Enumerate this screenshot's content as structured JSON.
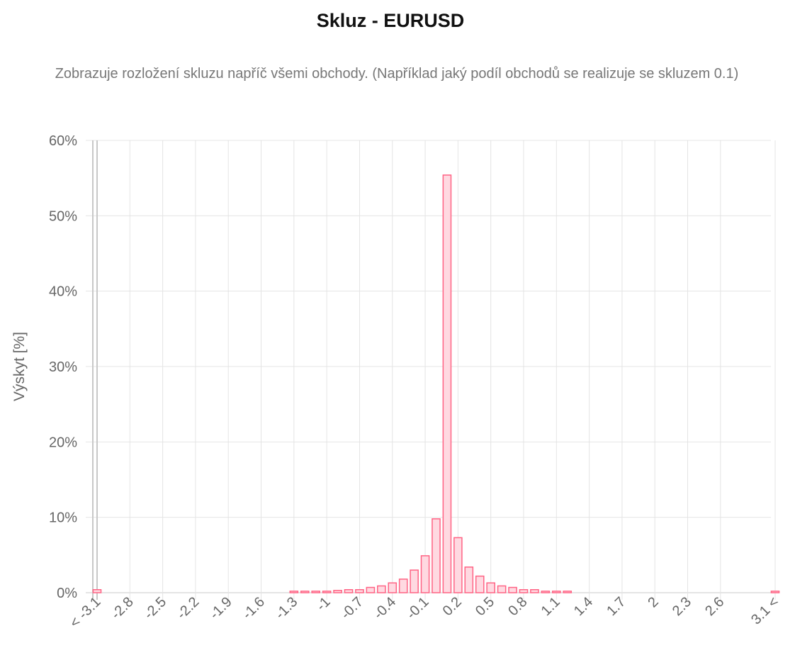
{
  "chart_data": {
    "type": "bar",
    "title": "Skluz - EURUSD",
    "subtitle": "Zobrazuje rozložení skluzu napříč všemi obchody. (Například jaký podíl obchodů se realizuje se skluzem 0.1)",
    "xlabel": "",
    "ylabel": "Výskyt [%]",
    "ylim": [
      0,
      60
    ],
    "yticks": [
      "0%",
      "10%",
      "20%",
      "30%",
      "40%",
      "50%",
      "60%"
    ],
    "grid": true,
    "legend": "none",
    "color_fill": "#ffd9e1",
    "color_stroke": "#ff6384",
    "categories": [
      "< -3.1",
      "-3",
      "-2.9",
      "-2.8",
      "-2.7",
      "-2.6",
      "-2.5",
      "-2.4",
      "-2.3",
      "-2.2",
      "-2.1",
      "-2",
      "-1.9",
      "-1.8",
      "-1.7",
      "-1.6",
      "-1.5",
      "-1.4",
      "-1.3",
      "-1.2",
      "-1.1",
      "-1",
      "-0.9",
      "-0.8",
      "-0.7",
      "-0.6",
      "-0.5",
      "-0.4",
      "-0.3",
      "-0.2",
      "-0.1",
      "0",
      "0.1",
      "0.2",
      "0.3",
      "0.4",
      "0.5",
      "0.6",
      "0.7",
      "0.8",
      "0.9",
      "1",
      "1.1",
      "1.2",
      "1.3",
      "1.4",
      "1.5",
      "1.6",
      "1.7",
      "1.8",
      "1.9",
      "2",
      "2.1",
      "2.2",
      "2.3",
      "2.4",
      "2.5",
      "2.6",
      "2.7",
      "2.8",
      "2.9",
      "3",
      "3.1 <"
    ],
    "xtick_labels": [
      "< -3.1",
      "-2.8",
      "-2.5",
      "-2.2",
      "-1.9",
      "-1.6",
      "-1.3",
      "-1",
      "-0.7",
      "-0.4",
      "-0.1",
      "0.2",
      "0.5",
      "0.8",
      "1.1",
      "1.4",
      "1.7",
      "2",
      "2.3",
      "2.6",
      "3.1 <"
    ],
    "values": [
      0.4,
      0,
      0,
      0,
      0,
      0,
      0,
      0,
      0,
      0,
      0,
      0,
      0,
      0,
      0,
      0,
      0,
      0,
      0.2,
      0.2,
      0.2,
      0.2,
      0.3,
      0.4,
      0.4,
      0.7,
      0.9,
      1.3,
      1.8,
      3.0,
      4.9,
      9.8,
      55.4,
      7.3,
      3.4,
      2.2,
      1.3,
      0.9,
      0.7,
      0.4,
      0.4,
      0.2,
      0.2,
      0.2,
      0,
      0,
      0,
      0,
      0,
      0,
      0,
      0,
      0,
      0,
      0,
      0,
      0,
      0,
      0,
      0,
      0,
      0,
      0.2
    ]
  }
}
